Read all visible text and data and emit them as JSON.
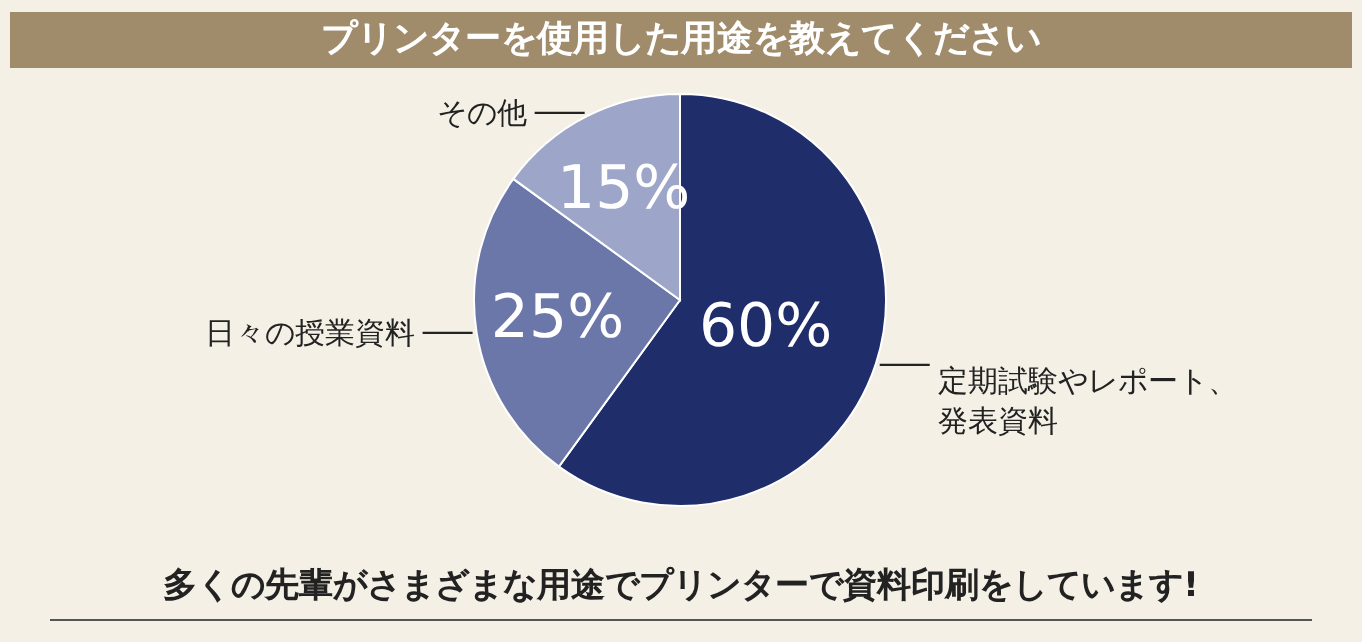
{
  "chart_data": {
    "type": "pie",
    "title": "プリンターを使用した用途を教えてください",
    "categories": [
      "定期試験やレポート、発表資料",
      "日々の授業資料",
      "その他"
    ],
    "values": [
      60,
      25,
      15
    ],
    "colors": [
      "#1f2d6b",
      "#6b77a8",
      "#9da5c9"
    ],
    "value_labels": [
      "60%",
      "25%",
      "15%"
    ],
    "annotations": [
      "多くの先輩がさまざまな用途でプリンターで資料印刷をしています!"
    ]
  }
}
